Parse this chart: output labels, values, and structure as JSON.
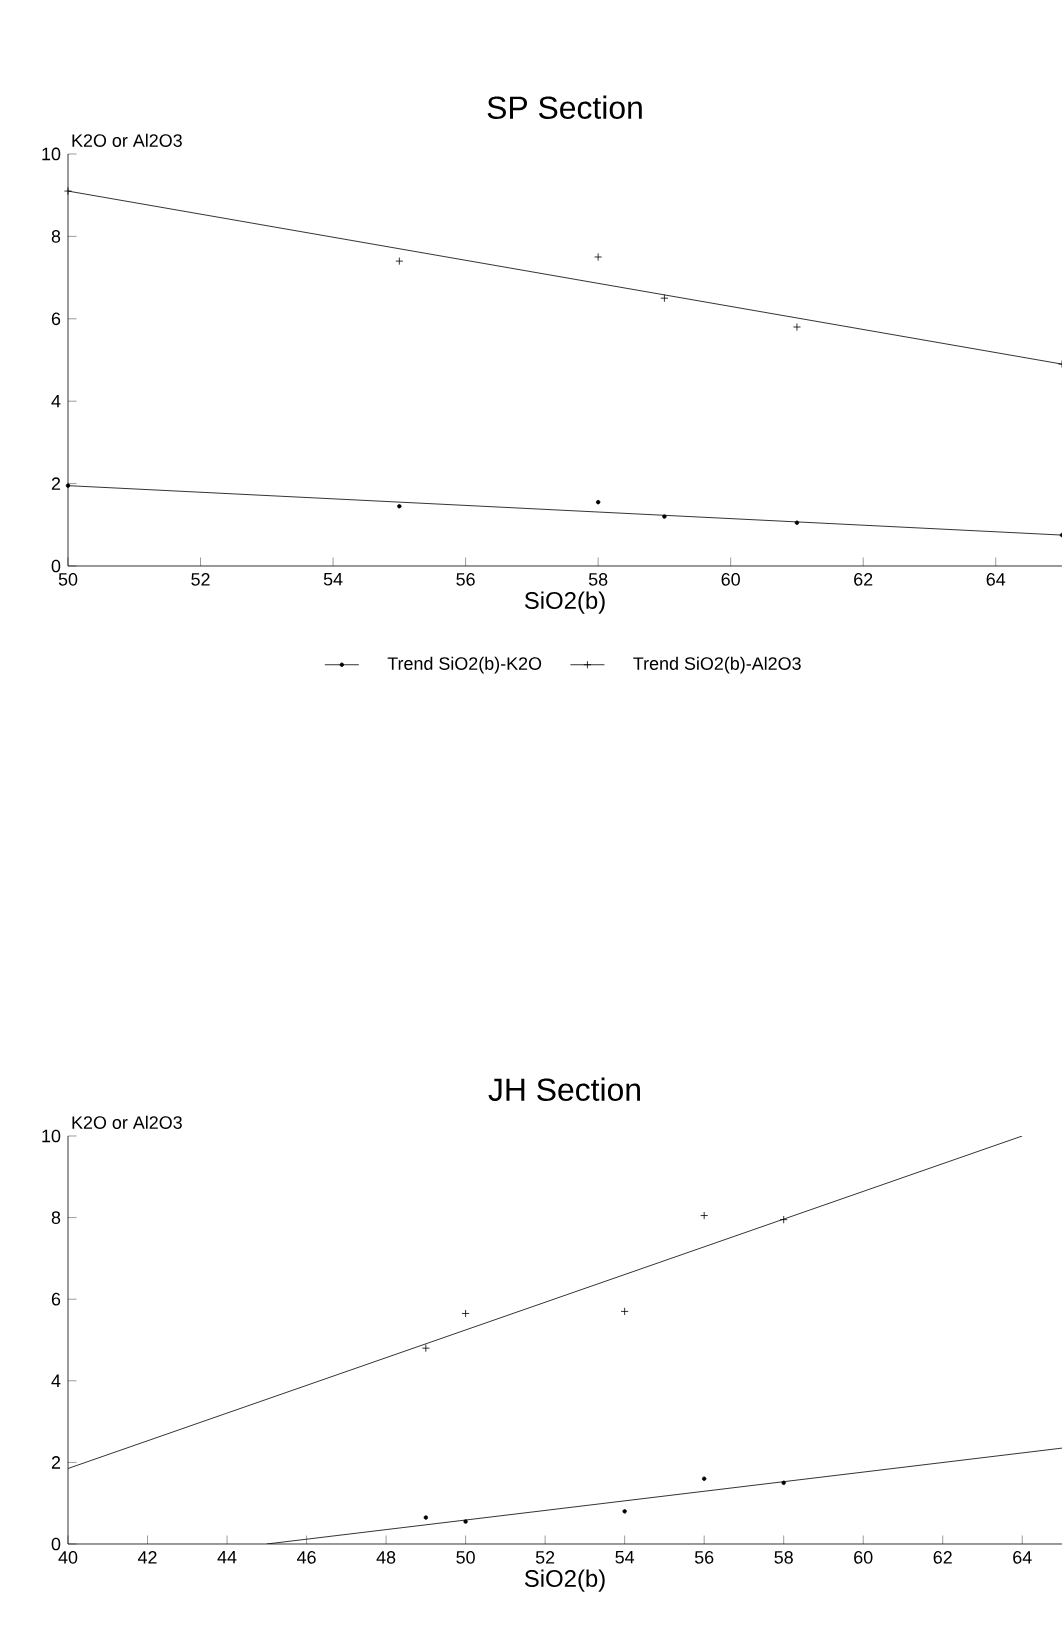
{
  "chart_data": [
    {
      "type": "scatter",
      "title": "SP Section",
      "xlabel": "SiO2(b)",
      "ylabel": "K2O or Al2O3",
      "xlim": [
        50,
        65
      ],
      "ylim": [
        0,
        10
      ],
      "xticks": [
        50,
        52,
        54,
        56,
        58,
        60,
        62,
        64
      ],
      "yticks": [
        0,
        2,
        4,
        6,
        8,
        10
      ],
      "legend": "bottom",
      "series": [
        {
          "name": "Trend SiO2(b)-K2O",
          "type": "line",
          "color": "#000000",
          "marker": "circle",
          "x": [
            50,
            65
          ],
          "values": [
            1.95,
            0.75
          ]
        },
        {
          "name": "Trend SiO2(b)-Al2O3",
          "type": "line",
          "color": "#000000",
          "marker": "cross",
          "x": [
            50,
            65
          ],
          "values": [
            9.1,
            4.9
          ]
        },
        {
          "color": "#000000",
          "marker": "circle",
          "x": [
            55,
            58,
            59,
            61
          ],
          "values": [
            1.45,
            1.55,
            1.2,
            1.05
          ]
        },
        {
          "color": "#000000",
          "marker": "cross",
          "x": [
            55,
            58,
            59,
            61
          ],
          "values": [
            7.4,
            7.5,
            6.5,
            5.8
          ]
        }
      ]
    },
    {
      "type": "scatter",
      "title": "JH Section",
      "xlabel": "SiO2(b)",
      "ylabel": "K2O or Al2O3",
      "xlim": [
        40,
        65
      ],
      "ylim": [
        0,
        10
      ],
      "xticks": [
        40,
        42,
        44,
        46,
        48,
        50,
        52,
        54,
        56,
        58,
        60,
        62,
        64
      ],
      "yticks": [
        0,
        2,
        4,
        6,
        8,
        10
      ],
      "series": [
        {
          "type": "line",
          "color": "#000000",
          "marker": "none",
          "x": [
            45,
            65
          ],
          "values": [
            0,
            2.35
          ]
        },
        {
          "type": "line",
          "color": "#000000",
          "marker": "none",
          "x": [
            40,
            64
          ],
          "values": [
            1.85,
            10
          ]
        },
        {
          "color": "#000000",
          "marker": "circle",
          "x": [
            49,
            50,
            54,
            56,
            58
          ],
          "values": [
            0.65,
            0.55,
            0.8,
            1.6,
            1.5
          ]
        },
        {
          "color": "#000000",
          "marker": "cross",
          "x": [
            49,
            50,
            54,
            56,
            58
          ],
          "values": [
            4.8,
            5.65,
            5.7,
            8.05,
            7.95
          ]
        }
      ]
    }
  ]
}
